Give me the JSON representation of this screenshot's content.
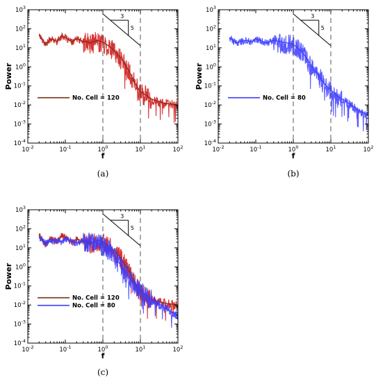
{
  "colors": {
    "brown": "#7a2f16",
    "red": "#d01010",
    "blue": "#3b3bff",
    "magenta": "#ff3bd8",
    "violet": "#7a3bff"
  },
  "chart_data": [
    {
      "panel": "a",
      "type": "line",
      "caption": "(a)",
      "xlabel": "f",
      "ylabel": "Power",
      "xscale": "log",
      "yscale": "log",
      "xlim": [
        0.01,
        100
      ],
      "ylim": [
        0.0001,
        1000
      ],
      "xticks": [
        "10-2",
        "10-1",
        "100",
        "101",
        "102"
      ],
      "yticks": [
        "10-4",
        "10-3",
        "10-2",
        "10-1",
        "100",
        "101",
        "102",
        "103"
      ],
      "vlines": [
        1,
        10
      ],
      "slope_triangle": {
        "run_label": "3",
        "rise_label": "5"
      },
      "legend": [
        {
          "label": "No. Cell = 120",
          "color_key": "brown"
        }
      ],
      "series": [
        {
          "name": "No. Cell = 120",
          "color_key": "brown",
          "fill_key": "red",
          "x": [
            0.02,
            0.03,
            0.04,
            0.06,
            0.08,
            0.1,
            0.15,
            0.2,
            0.3,
            0.5,
            0.7,
            1,
            1.5,
            2,
            3,
            5,
            7,
            10,
            15,
            20,
            30,
            50,
            70,
            100
          ],
          "y": [
            50,
            15,
            30,
            22,
            45,
            35,
            20,
            30,
            22,
            18,
            25,
            20,
            12,
            7,
            3,
            0.6,
            0.15,
            0.05,
            0.03,
            0.02,
            0.015,
            0.012,
            0.011,
            0.01
          ]
        }
      ]
    },
    {
      "panel": "b",
      "type": "line",
      "caption": "(b)",
      "xlabel": "f",
      "ylabel": "Power",
      "xscale": "log",
      "yscale": "log",
      "xlim": [
        0.01,
        100
      ],
      "ylim": [
        0.0001,
        1000
      ],
      "xticks": [
        "10-2",
        "10-1",
        "100",
        "101",
        "102"
      ],
      "yticks": [
        "10-4",
        "10-3",
        "10-2",
        "10-1",
        "100",
        "101",
        "102",
        "103"
      ],
      "vlines": [
        1,
        10
      ],
      "slope_triangle": {
        "run_label": "3",
        "rise_label": "5"
      },
      "legend": [
        {
          "label": "No. Cell = 80",
          "color_key": "blue"
        }
      ],
      "series": [
        {
          "name": "No. Cell = 80",
          "color_key": "blue",
          "fill_key": "blue",
          "x": [
            0.02,
            0.03,
            0.04,
            0.06,
            0.08,
            0.1,
            0.15,
            0.2,
            0.3,
            0.5,
            0.7,
            1,
            1.5,
            2,
            3,
            5,
            7,
            10,
            15,
            20,
            30,
            50,
            70,
            100
          ],
          "y": [
            35,
            18,
            22,
            25,
            20,
            30,
            22,
            18,
            25,
            20,
            18,
            15,
            8,
            4,
            1.2,
            0.3,
            0.12,
            0.06,
            0.03,
            0.02,
            0.012,
            0.006,
            0.004,
            0.003
          ]
        }
      ]
    },
    {
      "panel": "c",
      "type": "line",
      "caption": "(c)",
      "xlabel": "f",
      "ylabel": "Power",
      "xscale": "log",
      "yscale": "log",
      "xlim": [
        0.01,
        100
      ],
      "ylim": [
        0.0001,
        1000
      ],
      "xticks": [
        "10-2",
        "10-1",
        "100",
        "101",
        "102"
      ],
      "yticks": [
        "10-4",
        "10-3",
        "10-2",
        "10-1",
        "100",
        "101",
        "102",
        "103"
      ],
      "vlines": [
        1,
        10
      ],
      "slope_triangle": {
        "run_label": "3",
        "rise_label": "5"
      },
      "legend": [
        {
          "label": "No. Cell = 120",
          "color_key": "brown"
        },
        {
          "label": "No. Cell = 80",
          "color_key": "blue"
        }
      ],
      "series": [
        {
          "name": "No. Cell = 120",
          "color_key": "brown",
          "fill_key": "red",
          "x": [
            0.02,
            0.03,
            0.04,
            0.06,
            0.08,
            0.1,
            0.15,
            0.2,
            0.3,
            0.5,
            0.7,
            1,
            1.5,
            2,
            3,
            5,
            7,
            10,
            15,
            20,
            30,
            50,
            70,
            100
          ],
          "y": [
            50,
            15,
            30,
            22,
            45,
            35,
            20,
            30,
            22,
            18,
            25,
            20,
            12,
            7,
            3,
            0.6,
            0.15,
            0.05,
            0.03,
            0.02,
            0.015,
            0.012,
            0.011,
            0.01
          ]
        },
        {
          "name": "No. Cell = 80",
          "color_key": "blue",
          "fill_key": "blue",
          "x": [
            0.02,
            0.03,
            0.04,
            0.06,
            0.08,
            0.1,
            0.15,
            0.2,
            0.3,
            0.5,
            0.7,
            1,
            1.5,
            2,
            3,
            5,
            7,
            10,
            15,
            20,
            30,
            50,
            70,
            100
          ],
          "y": [
            35,
            18,
            22,
            25,
            20,
            30,
            22,
            18,
            25,
            20,
            18,
            15,
            8,
            4,
            1.2,
            0.3,
            0.12,
            0.06,
            0.03,
            0.02,
            0.012,
            0.006,
            0.004,
            0.003
          ]
        }
      ]
    }
  ]
}
